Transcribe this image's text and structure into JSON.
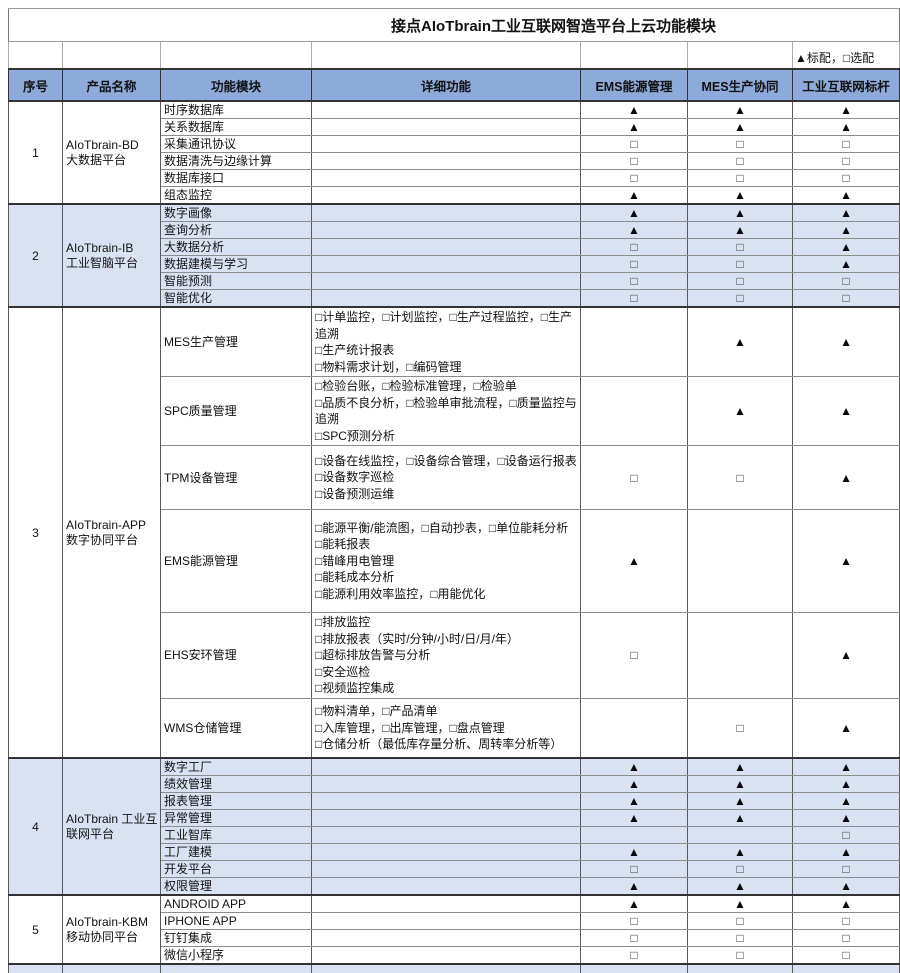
{
  "title": "接点AIoTbrain工业互联网智造平台上云功能模块",
  "legend": "▲标配，□选配",
  "symbols": {
    "standard": "▲",
    "optional": "□"
  },
  "colors": {
    "header_bg": "#8EAADB",
    "shaded_row_bg": "#D9E2F3",
    "border_dark": "#333333",
    "border_light": "#8c8c8c"
  },
  "columns": [
    "序号",
    "产品名称",
    "功能模块",
    "详细功能",
    "EMS能源管理",
    "MES生产协同",
    "工业互联网标杆"
  ],
  "sections": [
    {
      "no": "1",
      "product": "AIoTbrain-BD\n大数据平台",
      "shaded": false,
      "rows": [
        {
          "module": "时序数据库",
          "detail": "",
          "marks": [
            "▲",
            "▲",
            "▲"
          ]
        },
        {
          "module": "关系数据库",
          "detail": "",
          "marks": [
            "▲",
            "▲",
            "▲"
          ]
        },
        {
          "module": "采集通讯协议",
          "detail": "",
          "marks": [
            "□",
            "□",
            "□"
          ]
        },
        {
          "module": "数据清洗与边缘计算",
          "detail": "",
          "marks": [
            "□",
            "□",
            "□"
          ]
        },
        {
          "module": "数据库接口",
          "detail": "",
          "marks": [
            "□",
            "□",
            "□"
          ]
        },
        {
          "module": "组态监控",
          "detail": "",
          "marks": [
            "▲",
            "▲",
            "▲"
          ]
        }
      ]
    },
    {
      "no": "2",
      "product": "AIoTbrain-IB\n工业智脑平台",
      "shaded": true,
      "rows": [
        {
          "module": "数字画像",
          "detail": "",
          "marks": [
            "▲",
            "▲",
            "▲"
          ]
        },
        {
          "module": "查询分析",
          "detail": "",
          "marks": [
            "▲",
            "▲",
            "▲"
          ]
        },
        {
          "module": "大数据分析",
          "detail": "",
          "marks": [
            "□",
            "□",
            "▲"
          ]
        },
        {
          "module": "数据建模与学习",
          "detail": "",
          "marks": [
            "□",
            "□",
            "▲"
          ]
        },
        {
          "module": "智能预测",
          "detail": "",
          "marks": [
            "□",
            "□",
            "□"
          ]
        },
        {
          "module": "智能优化",
          "detail": "",
          "marks": [
            "□",
            "□",
            "□"
          ]
        }
      ]
    },
    {
      "no": "3",
      "product": "AIoTbrain-APP\n数字协同平台",
      "shaded": false,
      "rows": [
        {
          "module": "MES生产管理",
          "detail": "□计单监控，□计划监控，□生产过程监控，□生产追溯\n□生产统计报表\n□物料需求计划，□编码管理",
          "marks": [
            "",
            "▲",
            "▲"
          ]
        },
        {
          "module": "SPC质量管理",
          "detail": "□检验台账，□检验标准管理，□检验单\n□品质不良分析，□检验单审批流程，□质量监控与追溯\n□SPC预测分析",
          "marks": [
            "",
            "▲",
            "▲"
          ]
        },
        {
          "module": "TPM设备管理",
          "detail": "□设备在线监控，□设备综合管理，□设备运行报表\n□设备数字巡检\n□设备预测运维",
          "marks": [
            "□",
            "□",
            "▲"
          ]
        },
        {
          "module": "EMS能源管理",
          "detail": "□能源平衡/能流图，□自动抄表，□单位能耗分析\n□能耗报表\n□错峰用电管理\n□能耗成本分析\n□能源利用效率监控，□用能优化",
          "marks": [
            "▲",
            "",
            "▲"
          ]
        },
        {
          "module": "EHS安环管理",
          "detail": "□排放监控\n□排放报表（实时/分钟/小时/日/月/年）\n□超标排放告警与分析\n□安全巡检\n□视频监控集成",
          "marks": [
            "□",
            "",
            "▲"
          ]
        },
        {
          "module": "WMS仓储管理",
          "detail": "□物料清单，□产品清单\n□入库管理，□出库管理，□盘点管理\n□仓储分析（最低库存量分析、周转率分析等）",
          "marks": [
            "",
            "□",
            "▲"
          ]
        }
      ]
    },
    {
      "no": "4",
      "product": "AIoTbrain 工业互联网平台",
      "shaded": true,
      "rows": [
        {
          "module": "数字工厂",
          "detail": "",
          "marks": [
            "▲",
            "▲",
            "▲"
          ]
        },
        {
          "module": "绩效管理",
          "detail": "",
          "marks": [
            "▲",
            "▲",
            "▲"
          ]
        },
        {
          "module": "报表管理",
          "detail": "",
          "marks": [
            "▲",
            "▲",
            "▲"
          ]
        },
        {
          "module": "异常管理",
          "detail": "",
          "marks": [
            "▲",
            "▲",
            "▲"
          ]
        },
        {
          "module": "工业智库",
          "detail": "",
          "marks": [
            "",
            "",
            "□"
          ]
        },
        {
          "module": "工厂建模",
          "detail": "",
          "marks": [
            "▲",
            "▲",
            "▲"
          ]
        },
        {
          "module": "开发平台",
          "detail": "",
          "marks": [
            "□",
            "□",
            "□"
          ]
        },
        {
          "module": "权限管理",
          "detail": "",
          "marks": [
            "▲",
            "▲",
            "▲"
          ]
        }
      ]
    },
    {
      "no": "5",
      "product": "AIoTbrain-KBM\n移动协同平台",
      "shaded": false,
      "rows": [
        {
          "module": "ANDROID APP",
          "detail": "",
          "marks": [
            "▲",
            "▲",
            "▲"
          ]
        },
        {
          "module": "IPHONE APP",
          "detail": "",
          "marks": [
            "□",
            "□",
            "□"
          ]
        },
        {
          "module": "钉钉集成",
          "detail": "",
          "marks": [
            "□",
            "□",
            "□"
          ]
        },
        {
          "module": "微信小程序",
          "detail": "",
          "marks": [
            "□",
            "□",
            "□"
          ]
        }
      ]
    }
  ],
  "partial_bottom_row": {
    "shaded": true
  }
}
